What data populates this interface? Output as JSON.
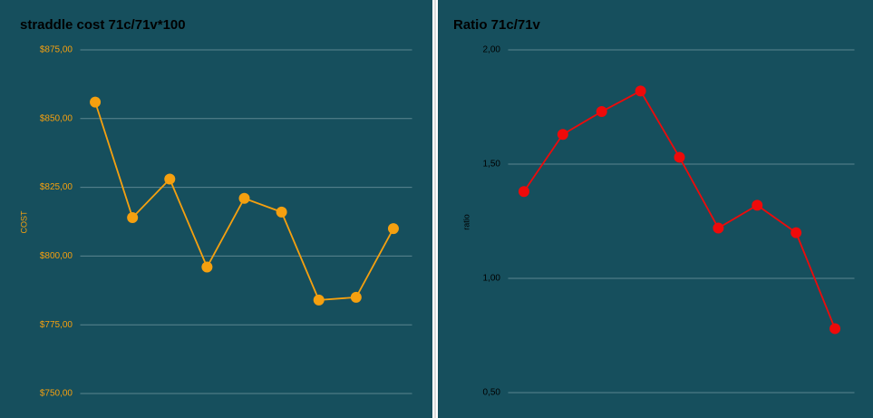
{
  "chart_data": [
    {
      "type": "line",
      "title": "straddle cost 71c/71v*100",
      "y_label": "COST",
      "color": "#f5a00f",
      "categories": [
        null,
        null,
        null,
        null,
        null,
        null,
        null,
        null,
        null
      ],
      "values": [
        856,
        814,
        828,
        796,
        821,
        816,
        784,
        785,
        810
      ],
      "ylim": [
        750,
        875
      ],
      "yticks": [
        {
          "value": 750,
          "label": "$750,00"
        },
        {
          "value": 775,
          "label": "$775,00"
        },
        {
          "value": 800,
          "label": "$800,00"
        },
        {
          "value": 825,
          "label": "$825,00"
        },
        {
          "value": 850,
          "label": "$850,00"
        },
        {
          "value": 875,
          "label": "$875,00"
        }
      ],
      "grid": true
    },
    {
      "type": "line",
      "title": "Ratio 71c/71v",
      "y_label": "ratio",
      "color": "#ee0a0a",
      "categories": [
        null,
        null,
        null,
        null,
        null,
        null,
        null,
        null,
        null
      ],
      "values": [
        1.38,
        1.63,
        1.73,
        1.82,
        1.53,
        1.22,
        1.32,
        1.2,
        0.78
      ],
      "ylim": [
        0.5,
        2.0
      ],
      "yticks": [
        {
          "value": 0.5,
          "label": "0,50"
        },
        {
          "value": 1.0,
          "label": "1,00"
        },
        {
          "value": 1.5,
          "label": "1,50"
        },
        {
          "value": 2.0,
          "label": "2,00"
        }
      ],
      "grid": true
    }
  ]
}
